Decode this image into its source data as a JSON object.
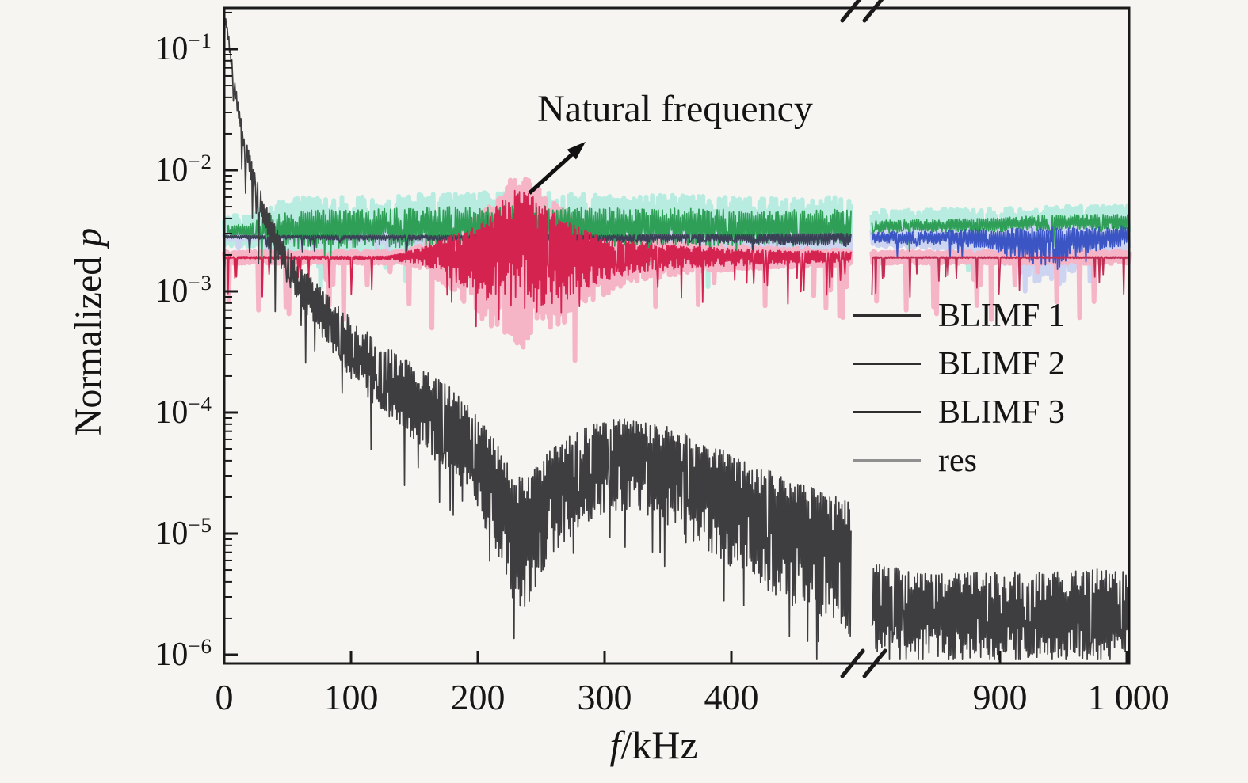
{
  "chart_data": {
    "type": "line",
    "title": "",
    "xlabel_italic": "f",
    "xlabel_rest": "/kHz",
    "ylabel_rest": "Normalized ",
    "ylabel_italic": "p",
    "x_axis": {
      "unit": "kHz",
      "segments": [
        {
          "min": 0,
          "max": 495
        },
        {
          "min": 799,
          "max": 1002
        }
      ],
      "break_between": [
        495,
        799
      ],
      "ticks_kHz": [
        0,
        100,
        200,
        300,
        400,
        900,
        1000
      ],
      "tick_labels": [
        "0",
        "100",
        "200",
        "300",
        "400",
        "900",
        "1 000"
      ]
    },
    "y_axis": {
      "scale": "log10",
      "range": [
        1e-06,
        0.1
      ],
      "ticks": [
        {
          "base": "10",
          "exp": "−1"
        },
        {
          "base": "10",
          "exp": "−2"
        },
        {
          "base": "10",
          "exp": "−3"
        },
        {
          "base": "10",
          "exp": "−4"
        },
        {
          "base": "10",
          "exp": "−5"
        },
        {
          "base": "10",
          "exp": "−6"
        }
      ]
    },
    "annotation": {
      "text": "Natural frequency",
      "target_kHz": 235,
      "peak_value_normalized_p": 0.007
    },
    "legend_items": [
      {
        "label": "BLIMF 1",
        "swatch_color": "#2e2e2e"
      },
      {
        "label": "BLIMF 2",
        "swatch_color": "#2e2e2e"
      },
      {
        "label": "BLIMF 3",
        "swatch_color": "#2e2e2e"
      },
      {
        "label": "res",
        "swatch_color": "#8f8f8f"
      }
    ],
    "series": [
      {
        "name": "BLIMF 1",
        "colors": [
          "#3a4156",
          "#3b55c4"
        ],
        "halo_color": "#ccd4f1",
        "halo_scale": 1.5,
        "halo_min": 0.02,
        "width": 1.8,
        "step": 0.8,
        "spike_prob": 0.05,
        "spike_extra": 0.12,
        "envelope": [
          [
            0,
            -2.545,
            0.006,
            0.02
          ],
          [
            100,
            -2.545,
            0.008,
            0.03
          ],
          [
            200,
            -2.545,
            0.008,
            0.04
          ],
          [
            300,
            -2.545,
            0.01,
            0.05
          ],
          [
            400,
            -2.54,
            0.012,
            0.06
          ],
          [
            450,
            -2.54,
            0.015,
            0.08
          ],
          [
            495,
            -2.54,
            0.02,
            0.09
          ],
          [
            799,
            -2.55,
            0.04,
            0.05
          ],
          [
            850,
            -2.55,
            0.05,
            0.07
          ],
          [
            890,
            -2.54,
            0.06,
            0.1
          ],
          [
            920,
            -2.55,
            0.07,
            0.22
          ],
          [
            945,
            -2.54,
            0.07,
            0.28
          ],
          [
            965,
            -2.54,
            0.06,
            0.15
          ],
          [
            1002,
            -2.52,
            0.07,
            0.1
          ]
        ]
      },
      {
        "name": "BLIMF 2",
        "colors": [
          "#2f9e57",
          "#2f9e57"
        ],
        "halo_color": "#b9ece1",
        "halo_scale": 1.7,
        "halo_min": 0.13,
        "width": 1.8,
        "step": 0.8,
        "spike_prob": 0.04,
        "spike_extra": 0.18,
        "envelope": [
          [
            0,
            -2.5,
            0.05,
            0.06
          ],
          [
            20,
            -2.5,
            0.06,
            0.07
          ],
          [
            32,
            -2.49,
            0.12,
            0.13
          ],
          [
            60,
            -2.48,
            0.15,
            0.17
          ],
          [
            120,
            -2.47,
            0.15,
            0.17
          ],
          [
            180,
            -2.46,
            0.16,
            0.18
          ],
          [
            240,
            -2.45,
            0.16,
            0.18
          ],
          [
            300,
            -2.46,
            0.15,
            0.17
          ],
          [
            360,
            -2.46,
            0.15,
            0.16
          ],
          [
            420,
            -2.47,
            0.14,
            0.16
          ],
          [
            495,
            -2.46,
            0.14,
            0.16
          ],
          [
            799,
            -2.46,
            0.05,
            0.06
          ],
          [
            880,
            -2.45,
            0.05,
            0.06
          ],
          [
            940,
            -2.43,
            0.06,
            0.07
          ],
          [
            1002,
            -2.42,
            0.06,
            0.07
          ]
        ]
      },
      {
        "name": "BLIMF 3",
        "colors": [
          "#d52350",
          "#c03055"
        ],
        "halo_color": "#f6b4c7",
        "halo_scale": 1.4,
        "halo_min": 0.05,
        "width": 1.8,
        "step": 0.6,
        "spike_prob": 0.05,
        "spike_extra": 0.35,
        "envelope": [
          [
            0,
            -2.72,
            0.008,
            0.01
          ],
          [
            130,
            -2.72,
            0.012,
            0.02
          ],
          [
            155,
            -2.7,
            0.06,
            0.08
          ],
          [
            175,
            -2.67,
            0.12,
            0.2
          ],
          [
            195,
            -2.66,
            0.18,
            0.35
          ],
          [
            210,
            -2.6,
            0.25,
            0.5
          ],
          [
            222,
            -2.52,
            0.3,
            0.6
          ],
          [
            230,
            -2.45,
            0.29,
            0.7
          ],
          [
            236,
            -2.42,
            0.27,
            0.75
          ],
          [
            242,
            -2.48,
            0.28,
            0.65
          ],
          [
            255,
            -2.56,
            0.25,
            0.55
          ],
          [
            270,
            -2.62,
            0.2,
            0.45
          ],
          [
            290,
            -2.66,
            0.14,
            0.3
          ],
          [
            320,
            -2.69,
            0.1,
            0.17
          ],
          [
            370,
            -2.7,
            0.07,
            0.1
          ],
          [
            430,
            -2.71,
            0.05,
            0.07
          ],
          [
            495,
            -2.71,
            0.04,
            0.05
          ],
          [
            799,
            -2.72,
            0.006,
            0.008
          ],
          [
            1002,
            -2.72,
            0.006,
            0.008
          ]
        ]
      },
      {
        "name": "res",
        "colors": [
          "#3e3e40",
          "#3e3e40"
        ],
        "halo_color": null,
        "halo_scale": 1,
        "halo_min": 0,
        "width": 1.7,
        "step": 0.6,
        "spike_prob": 0.08,
        "spike_extra": 0.5,
        "envelope": [
          [
            0,
            -0.7,
            0.02,
            0.02
          ],
          [
            3,
            -0.88,
            0.03,
            0.04
          ],
          [
            8,
            -1.3,
            0.05,
            0.07
          ],
          [
            15,
            -1.75,
            0.07,
            0.09
          ],
          [
            22,
            -2.02,
            0.09,
            0.11
          ],
          [
            30,
            -2.3,
            0.1,
            0.13
          ],
          [
            42,
            -2.6,
            0.12,
            0.16
          ],
          [
            55,
            -2.85,
            0.14,
            0.18
          ],
          [
            70,
            -3.05,
            0.16,
            0.22
          ],
          [
            85,
            -3.25,
            0.18,
            0.26
          ],
          [
            100,
            -3.42,
            0.2,
            0.3
          ],
          [
            120,
            -3.62,
            0.22,
            0.34
          ],
          [
            145,
            -3.8,
            0.24,
            0.4
          ],
          [
            170,
            -3.98,
            0.26,
            0.45
          ],
          [
            195,
            -4.22,
            0.28,
            0.5
          ],
          [
            215,
            -4.55,
            0.3,
            0.6
          ],
          [
            228,
            -4.85,
            0.35,
            0.7
          ],
          [
            238,
            -4.92,
            0.4,
            0.75
          ],
          [
            250,
            -4.72,
            0.35,
            0.6
          ],
          [
            265,
            -4.55,
            0.32,
            0.55
          ],
          [
            285,
            -4.42,
            0.3,
            0.5
          ],
          [
            310,
            -4.32,
            0.28,
            0.5
          ],
          [
            335,
            -4.35,
            0.28,
            0.5
          ],
          [
            360,
            -4.45,
            0.3,
            0.55
          ],
          [
            385,
            -4.58,
            0.3,
            0.6
          ],
          [
            415,
            -4.72,
            0.32,
            0.65
          ],
          [
            445,
            -4.88,
            0.32,
            0.7
          ],
          [
            475,
            -5.0,
            0.34,
            0.75
          ],
          [
            495,
            -5.08,
            0.35,
            0.78
          ],
          [
            799,
            -5.55,
            0.3,
            0.42
          ],
          [
            850,
            -5.6,
            0.3,
            0.42
          ],
          [
            900,
            -5.62,
            0.3,
            0.44
          ],
          [
            950,
            -5.6,
            0.3,
            0.44
          ],
          [
            1002,
            -5.58,
            0.3,
            0.44
          ]
        ]
      }
    ],
    "style": {
      "background": "#f7f5f2",
      "axis_color": "#1a1a1a",
      "text_color": "#141414"
    }
  }
}
